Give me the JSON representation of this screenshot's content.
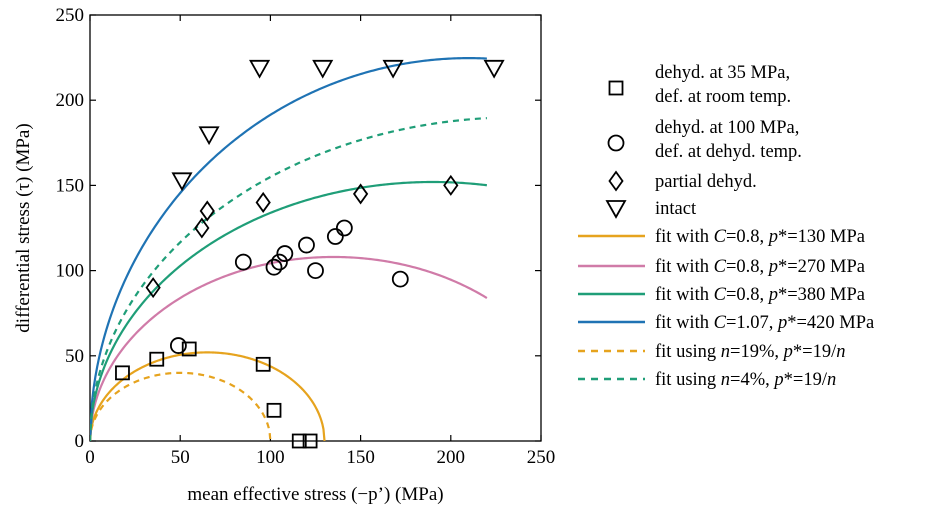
{
  "chart_data": {
    "type": "scatter",
    "xlabel": "mean effective stress (−p’) (MPa)",
    "ylabel": "differential stress (τ) (MPa)",
    "xlim": [
      0,
      250
    ],
    "ylim": [
      0,
      250
    ],
    "xticks": [
      "0",
      "50",
      "100",
      "150",
      "200",
      "250"
    ],
    "yticks": [
      "0",
      "50",
      "100",
      "150",
      "200",
      "250"
    ],
    "grid": false,
    "legend_position": "right, outside plot",
    "marker_series": [
      {
        "name": "dehyd. at 35 MPa,",
        "name_line2": "def. at room temp.",
        "marker": "square",
        "points": [
          [
            18,
            40
          ],
          [
            37,
            48
          ],
          [
            55,
            54
          ],
          [
            96,
            45
          ],
          [
            102,
            18
          ],
          [
            116,
            0
          ],
          [
            122,
            0
          ]
        ]
      },
      {
        "name": "dehyd. at 100 MPa,",
        "name_line2": "def. at dehyd. temp.",
        "marker": "circle",
        "points": [
          [
            49,
            56
          ],
          [
            85,
            105
          ],
          [
            102,
            102
          ],
          [
            105,
            105
          ],
          [
            108,
            110
          ],
          [
            120,
            115
          ],
          [
            125,
            100
          ],
          [
            136,
            120
          ],
          [
            141,
            125
          ],
          [
            172,
            95
          ]
        ]
      },
      {
        "name": "partial dehyd.",
        "marker": "diamond",
        "points": [
          [
            35,
            90
          ],
          [
            62,
            125
          ],
          [
            65,
            135
          ],
          [
            96,
            140
          ],
          [
            150,
            145
          ],
          [
            200,
            150
          ]
        ]
      },
      {
        "name": "intact",
        "marker": "triangle-down",
        "points": [
          [
            51,
            153
          ],
          [
            66,
            180
          ],
          [
            94,
            219
          ],
          [
            129,
            219
          ],
          [
            168,
            219
          ],
          [
            224,
            219
          ]
        ]
      }
    ],
    "fit_series": [
      {
        "name_parts": [
          "fit with ",
          "C",
          "=0.8, ",
          "p",
          "*=130 MPa"
        ],
        "name_italic": [
          false,
          true,
          false,
          true,
          false
        ],
        "color": "#e6a31e",
        "dash": "solid",
        "C": 0.8,
        "pstar": 130,
        "x_max": 130
      },
      {
        "name_parts": [
          "fit with ",
          "C",
          "=0.8, ",
          "p",
          "*=270 MPa"
        ],
        "name_italic": [
          false,
          true,
          false,
          true,
          false
        ],
        "color": "#d07ba8",
        "dash": "solid",
        "C": 0.8,
        "pstar": 270,
        "x_max": 220
      },
      {
        "name_parts": [
          "fit with ",
          "C",
          "=0.8, ",
          "p",
          "*=380 MPa"
        ],
        "name_italic": [
          false,
          true,
          false,
          true,
          false
        ],
        "color": "#1f9e78",
        "dash": "solid",
        "C": 0.8,
        "pstar": 380,
        "x_max": 220
      },
      {
        "name_parts": [
          "fit with ",
          "C",
          "=1.07, ",
          "p",
          "*=420 MPa"
        ],
        "name_italic": [
          false,
          true,
          false,
          true,
          false
        ],
        "color": "#1f73b4",
        "dash": "solid",
        "C": 1.07,
        "pstar": 420,
        "x_max": 220
      },
      {
        "name_parts": [
          "fit using ",
          "n",
          "=19%, ",
          "p",
          "*=19/",
          "n"
        ],
        "name_italic": [
          false,
          true,
          false,
          true,
          false,
          true
        ],
        "color": "#e6a31e",
        "dash": "dashed",
        "C": 0.8,
        "pstar": 100,
        "x_max": 100
      },
      {
        "name_parts": [
          "fit using ",
          "n",
          "=4%, ",
          "p",
          "*=19/",
          "n"
        ],
        "name_italic": [
          false,
          true,
          false,
          true,
          false,
          true
        ],
        "color": "#1f9e78",
        "dash": "dashed",
        "C": 0.8,
        "pstar": 475,
        "x_max": 220
      }
    ]
  }
}
